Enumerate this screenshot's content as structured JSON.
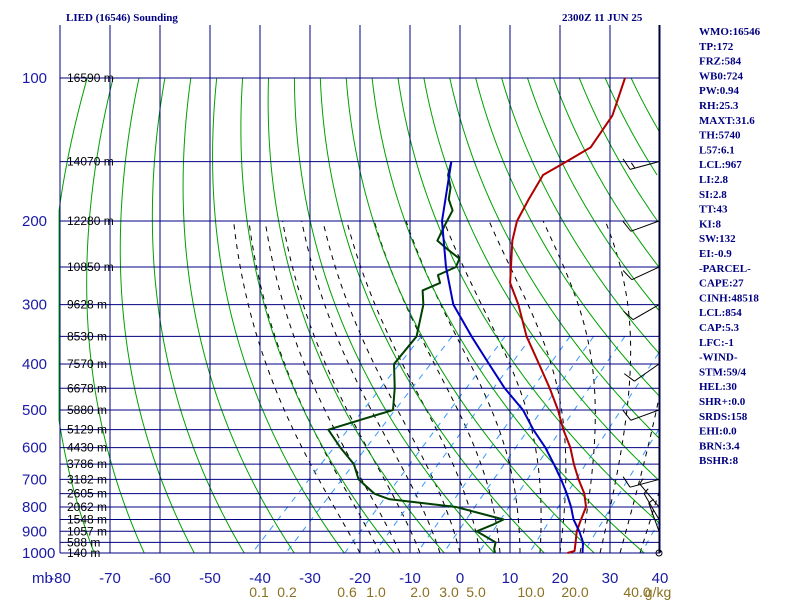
{
  "header": {
    "station": "LIED (16546) Sounding",
    "time": "2300Z 11 JUN 25"
  },
  "colors": {
    "frame": "#000080",
    "dry_adiabat": "#00a000",
    "moist_adiabat": "#000000",
    "mixing_ratio": "#3399ff",
    "temperature": "#b00000",
    "dewpoint": "#004000",
    "parcel": "#0000c0",
    "wind": "#000000"
  },
  "chart_data": {
    "type": "line",
    "title": "LIED (16546) Sounding",
    "pressure_axis": {
      "unit_label": "mb",
      "ticks": [
        "100",
        "200",
        "300",
        "400",
        "500",
        "600",
        "700",
        "800",
        "900",
        "1000"
      ],
      "range": [
        100,
        1000
      ],
      "scale": "log"
    },
    "temperature_axis": {
      "ticks": [
        "-80",
        "-70",
        "-60",
        "-50",
        "-40",
        "-30",
        "-20",
        "-10",
        "0",
        "10",
        "20",
        "30",
        "40"
      ],
      "range": [
        -80,
        30
      ],
      "skew": true
    },
    "mixing_ratio_labels": [
      "0.1",
      "0.2",
      "0.6",
      "1.0",
      "2.0",
      "3.0",
      "5.0",
      "10.0",
      "20.0",
      "40.0",
      "g/kg"
    ],
    "height_labels": [
      {
        "p": 100,
        "label": "16590 m"
      },
      {
        "p": 150,
        "label": "14070 m"
      },
      {
        "p": 200,
        "label": "12280 m"
      },
      {
        "p": 250,
        "label": "10850 m"
      },
      {
        "p": 300,
        "label": "9628 m"
      },
      {
        "p": 350,
        "label": "8530 m"
      },
      {
        "p": 400,
        "label": "7570 m"
      },
      {
        "p": 450,
        "label": "6678 m"
      },
      {
        "p": 500,
        "label": "5880 m"
      },
      {
        "p": 550,
        "label": "5129 m"
      },
      {
        "p": 600,
        "label": "4430 m"
      },
      {
        "p": 650,
        "label": "3786 m"
      },
      {
        "p": 700,
        "label": "3182 m"
      },
      {
        "p": 750,
        "label": "2605 m"
      },
      {
        "p": 800,
        "label": "2062 m"
      },
      {
        "p": 850,
        "label": "1548 m"
      },
      {
        "p": 900,
        "label": "1057 m"
      },
      {
        "p": 950,
        "label": "588 m"
      },
      {
        "p": 1000,
        "label": "140 m"
      }
    ],
    "series": [
      {
        "key": "temperature",
        "points": [
          [
            100,
            -62
          ],
          [
            120,
            -57
          ],
          [
            140,
            -55
          ],
          [
            150,
            -57
          ],
          [
            160,
            -59
          ],
          [
            180,
            -57
          ],
          [
            200,
            -55
          ],
          [
            220,
            -52
          ],
          [
            250,
            -47
          ],
          [
            270,
            -44
          ],
          [
            300,
            -38
          ],
          [
            350,
            -30
          ],
          [
            400,
            -22
          ],
          [
            450,
            -15
          ],
          [
            500,
            -9
          ],
          [
            550,
            -4
          ],
          [
            600,
            1
          ],
          [
            650,
            5
          ],
          [
            700,
            9
          ],
          [
            750,
            13
          ],
          [
            800,
            16
          ],
          [
            850,
            17.5
          ],
          [
            900,
            19
          ],
          [
            950,
            21
          ],
          [
            990,
            22.5
          ],
          [
            1000,
            21.5
          ]
        ]
      },
      {
        "key": "dewpoint",
        "points": [
          [
            150,
            -80
          ],
          [
            160,
            -78
          ],
          [
            170,
            -75
          ],
          [
            180,
            -73
          ],
          [
            190,
            -70
          ],
          [
            200,
            -69
          ],
          [
            210,
            -68
          ],
          [
            220,
            -67
          ],
          [
            230,
            -63
          ],
          [
            240,
            -59
          ],
          [
            250,
            -58
          ],
          [
            260,
            -60
          ],
          [
            270,
            -58
          ],
          [
            280,
            -60
          ],
          [
            300,
            -57
          ],
          [
            350,
            -52
          ],
          [
            400,
            -51
          ],
          [
            450,
            -46
          ],
          [
            500,
            -42
          ],
          [
            550,
            -51
          ],
          [
            600,
            -45
          ],
          [
            650,
            -39
          ],
          [
            700,
            -35
          ],
          [
            750,
            -29
          ],
          [
            770,
            -25
          ],
          [
            800,
            -10
          ],
          [
            850,
            2
          ],
          [
            870,
            1
          ],
          [
            900,
            -1
          ],
          [
            950,
            5
          ],
          [
            980,
            6
          ],
          [
            1000,
            7
          ]
        ]
      },
      {
        "key": "parcel",
        "points": [
          [
            150,
            -80
          ],
          [
            200,
            -70
          ],
          [
            250,
            -60
          ],
          [
            300,
            -51
          ],
          [
            350,
            -41
          ],
          [
            400,
            -32
          ],
          [
            450,
            -24
          ],
          [
            500,
            -16
          ],
          [
            550,
            -10
          ],
          [
            600,
            -4
          ],
          [
            650,
            1
          ],
          [
            700,
            5.5
          ],
          [
            750,
            9.5
          ],
          [
            800,
            13
          ],
          [
            850,
            16
          ],
          [
            900,
            19.5
          ],
          [
            950,
            22.5
          ],
          [
            1000,
            24.5
          ]
        ]
      }
    ]
  },
  "wind_profile": [
    {
      "p": 150,
      "dir": 255,
      "spd": 15
    },
    {
      "p": 200,
      "dir": 250,
      "spd": 10
    },
    {
      "p": 250,
      "dir": 245,
      "spd": 10
    },
    {
      "p": 300,
      "dir": 240,
      "spd": 10
    },
    {
      "p": 400,
      "dir": 235,
      "spd": 10
    },
    {
      "p": 500,
      "dir": 250,
      "spd": 10
    },
    {
      "p": 700,
      "dir": 255,
      "spd": 10
    },
    {
      "p": 800,
      "dir": 320,
      "spd": 5
    },
    {
      "p": 850,
      "dir": 330,
      "spd": 5
    },
    {
      "p": 900,
      "dir": 340,
      "spd": 5
    },
    {
      "p": 1000,
      "dir": 0,
      "spd": 0
    }
  ],
  "indices": [
    "WMO:16546",
    "TP:172",
    "FRZ:584",
    "WB0:724",
    "PW:0.94",
    "RH:25.3",
    "MAXT:31.6",
    "TH:5740",
    "L57:6.1",
    "LCL:967",
    "LI:2.8",
    "SI:2.8",
    "TT:43",
    "KI:8",
    "SW:132",
    "EI:-0.9",
    "-PARCEL-",
    "CAPE:27",
    "CINH:48518",
    "LCL:854",
    "CAP:5.3",
    "LFC:-1",
    "-WIND-",
    "STM:59/4",
    "HEL:30",
    "SHR+:0.0",
    "SRDS:158",
    "EHI:0.0",
    "BRN:3.4",
    "BSHR:8"
  ]
}
